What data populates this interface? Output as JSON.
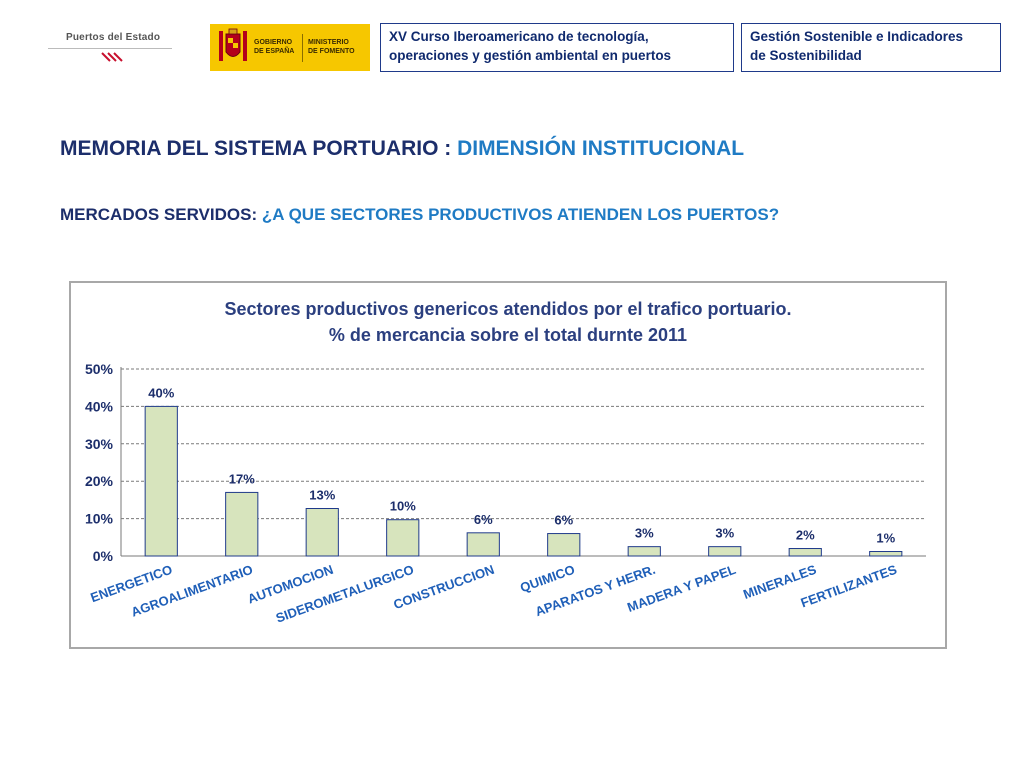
{
  "header": {
    "puertos_logo_text": "Puertos del Estado",
    "gobierno_text": [
      "GOBIERNO",
      "DE ESPAÑA"
    ],
    "ministerio_text": [
      "MINISTERIO",
      "DE FOMENTO"
    ],
    "course_box": [
      "XV Curso Iberoamericano de tecnología,",
      "operaciones y gestión ambiental en puertos"
    ],
    "topic_box": [
      "Gestión Sostenible e Indicadores",
      "de Sostenibilidad"
    ]
  },
  "titles": {
    "main_prefix": "MEMORIA DEL SISTEMA PORTUARIO : ",
    "main_highlight": "DIMENSIÓN INSTITUCIONAL",
    "sub_prefix": "MERCADOS SERVIDOS: ",
    "sub_highlight": "¿A QUE SECTORES PRODUCTIVOS ATIENDEN LOS PUERTOS?"
  },
  "colors": {
    "bar_fill": "#d7e4bd",
    "bar_stroke": "#1f3a8a",
    "text_navy": "#1c2e6b",
    "highlight_blue": "#1f7bc4",
    "chart_title": "#2b3f7f"
  },
  "chart_data": {
    "type": "bar",
    "title": [
      "Sectores productivos genericos atendidos por el trafico portuario.",
      "% de mercancia sobre el total durnte 2011"
    ],
    "xlabel": "",
    "ylabel": "",
    "ylim": [
      0,
      50
    ],
    "yticks": [
      "0%",
      "10%",
      "20%",
      "30%",
      "40%",
      "50%"
    ],
    "ytick_values": [
      0,
      10,
      20,
      30,
      40,
      50
    ],
    "grid": true,
    "categories": [
      "ENERGETICO",
      "AGROALIMENTARIO",
      "AUTOMOCION",
      "SIDEROMETALURGICO",
      "CONSTRUCCION",
      "QUIMICO",
      "APARATOS Y HERR.",
      "MADERA Y PAPEL",
      "MINERALES",
      "FERTILIZANTES"
    ],
    "values": [
      40,
      17,
      12.7,
      9.7,
      6.2,
      6,
      2.5,
      2.5,
      2,
      1.2
    ],
    "data_labels": [
      "40%",
      "17%",
      "13%",
      "10%",
      "6%",
      "6%",
      "3%",
      "3%",
      "2%",
      "1%"
    ]
  }
}
